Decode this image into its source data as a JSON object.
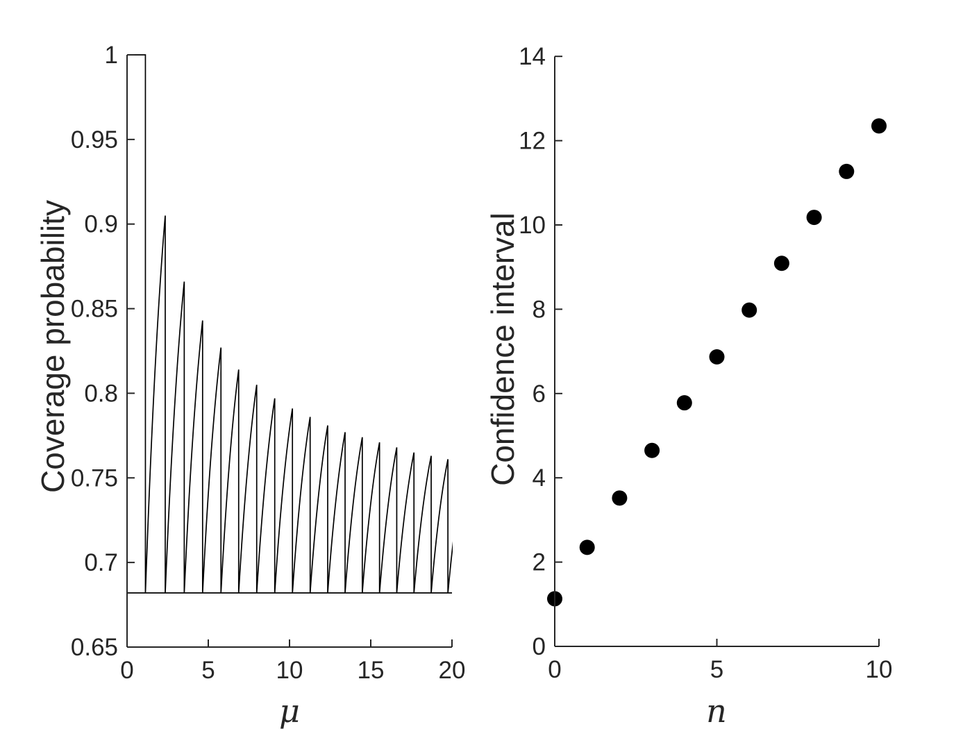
{
  "figure": {
    "background": "#ffffff",
    "axis_color": "#262626",
    "data_color": "#000000"
  },
  "chart_data": [
    {
      "id": "coverage-vs-mu",
      "type": "line",
      "xlabel": "μ",
      "ylabel": "Coverage probability",
      "xlim": [
        0,
        20
      ],
      "ylim": [
        0.65,
        1.0
      ],
      "xticks": [
        0,
        5,
        10,
        15,
        20
      ],
      "xtick_labels": [
        "0",
        "5",
        "10",
        "15",
        "20"
      ],
      "yticks": [
        0.65,
        0.7,
        0.75,
        0.8,
        0.85,
        0.9,
        0.95,
        1
      ],
      "ytick_labels": [
        "0.65",
        "0.7",
        "0.75",
        "0.8",
        "0.85",
        "0.9",
        "0.95",
        "1"
      ],
      "grid": false,
      "legend": false,
      "line_color": "#000000",
      "nominal_level_line": {
        "y": 0.682,
        "x0": 0,
        "x1": 20
      },
      "flat_top": {
        "x0": 0,
        "x1": 1.13,
        "y": 1.0
      },
      "sawtooth": {
        "valley": 0.682,
        "drop_points": [
          1.13,
          2.35,
          3.52,
          4.65,
          5.78,
          6.87,
          7.98,
          9.09,
          10.18,
          11.27,
          12.35,
          13.42,
          14.48,
          15.54,
          16.6,
          17.66,
          18.72,
          19.75
        ],
        "peaks": [
          0.905,
          0.866,
          0.843,
          0.827,
          0.814,
          0.805,
          0.797,
          0.791,
          0.786,
          0.781,
          0.777,
          0.774,
          0.771,
          0.768,
          0.765,
          0.763,
          0.761
        ],
        "next_virtual_drop": 20.83,
        "next_virtual_peak": 0.759,
        "end_point": [
          20,
          0.702
        ]
      }
    },
    {
      "id": "confidence-interval-vs-n",
      "type": "scatter",
      "xlabel": "n",
      "ylabel": "Confidence interval",
      "xlim": [
        0,
        10
      ],
      "ylim": [
        0,
        14
      ],
      "xticks": [
        0,
        5,
        10
      ],
      "xtick_labels": [
        "0",
        "5",
        "10"
      ],
      "yticks": [
        0,
        2,
        4,
        6,
        8,
        10,
        12,
        14
      ],
      "ytick_labels": [
        "0",
        "2",
        "4",
        "6",
        "8",
        "10",
        "12",
        "14"
      ],
      "grid": false,
      "legend": false,
      "marker": "filled-circle",
      "marker_color": "#000000",
      "marker_radius_px": 11,
      "x": [
        0,
        1,
        2,
        3,
        4,
        5,
        6,
        7,
        8,
        9,
        10
      ],
      "y": [
        1.13,
        2.35,
        3.52,
        4.65,
        5.78,
        6.87,
        7.98,
        9.09,
        10.18,
        11.27,
        12.35
      ]
    }
  ]
}
